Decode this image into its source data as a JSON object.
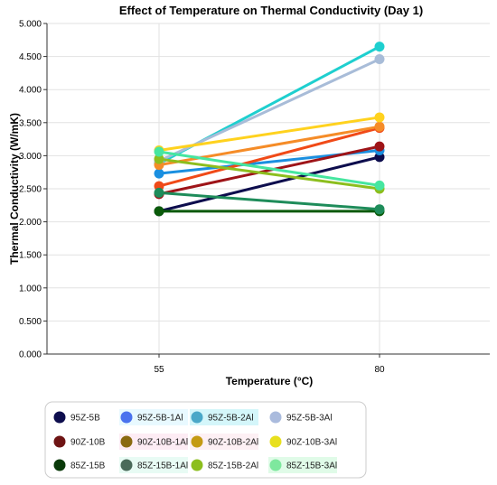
{
  "chart_data": {
    "type": "line",
    "title": "Effect of Temperature on Thermal Conductivity (Day 1)",
    "xlabel": "Temperature (°C)",
    "ylabel": "Thermal Conductivity (W/mK)",
    "categories": [
      "55",
      "80"
    ],
    "ylim": [
      0,
      5
    ],
    "yticks": [
      "0.000",
      "0.500",
      "1.000",
      "1.500",
      "2.000",
      "2.500",
      "3.000",
      "3.500",
      "4.000",
      "4.500",
      "5.000"
    ],
    "grid": true,
    "legend_position": "bottom",
    "series": [
      {
        "name": "95Z-5B",
        "values": [
          2.16,
          2.98
        ],
        "color": "#0d0d4d",
        "line": true
      },
      {
        "name": "95Z-5B-1Al",
        "values": [
          2.73,
          3.08
        ],
        "color": "#1a8fe0",
        "line": true
      },
      {
        "name": "95Z-5B-2Al",
        "values": [
          2.88,
          4.65
        ],
        "color": "#1ecfcf",
        "line": true
      },
      {
        "name": "95Z-5B-3Al",
        "values": [
          2.92,
          4.46
        ],
        "color": "#a8bcd8",
        "line": true
      },
      {
        "name": "90Z-10B",
        "values": [
          2.42,
          3.14
        ],
        "color": "#9e1418",
        "line": true
      },
      {
        "name": "90Z-10B-1Al",
        "values": [
          2.54,
          3.42
        ],
        "color": "#f04a18",
        "line": true
      },
      {
        "name": "90Z-10B-2Al",
        "values": [
          2.86,
          3.44
        ],
        "color": "#f58c28",
        "line": true
      },
      {
        "name": "90Z-10B-3Al",
        "values": [
          3.08,
          3.58
        ],
        "color": "#ffd21e",
        "line": true
      },
      {
        "name": "85Z-15B",
        "values": [
          2.16,
          2.16
        ],
        "color": "#0a5a0a",
        "line": true
      },
      {
        "name": "85Z-15B-1Al",
        "values": [
          2.44,
          2.19
        ],
        "color": "#1e8c5a",
        "line": true
      },
      {
        "name": "85Z-15B-2Al",
        "values": [
          2.95,
          2.5
        ],
        "color": "#8cbe1e",
        "line": true
      },
      {
        "name": "85Z-15B-3Al",
        "values": [
          3.06,
          2.55
        ],
        "color": "#46e6a0",
        "line": true
      }
    ],
    "legend": [
      {
        "name": "95Z-5B",
        "color": "#0d0d4d",
        "bg": ""
      },
      {
        "name": "95Z-5B-1Al",
        "color": "#4a72ee",
        "bg": "#e8f9ff"
      },
      {
        "name": "95Z-5B-2Al",
        "color": "#4aa8c8",
        "bg": "#d4f6fa"
      },
      {
        "name": "95Z-5B-3Al",
        "color": "#aabbdd",
        "bg": ""
      },
      {
        "name": "90Z-10B",
        "color": "#6e1414",
        "bg": ""
      },
      {
        "name": "90Z-10B-1Al",
        "color": "#8a6a10",
        "bg": "#fdecf4"
      },
      {
        "name": "90Z-10B-2Al",
        "color": "#c49a14",
        "bg": "#fdf0f4"
      },
      {
        "name": "90Z-10B-3Al",
        "color": "#e8e01e",
        "bg": ""
      },
      {
        "name": "85Z-15B",
        "color": "#0a3a0a",
        "bg": ""
      },
      {
        "name": "85Z-15B-1Al",
        "color": "#4a6a5a",
        "bg": "#e8fbf4"
      },
      {
        "name": "85Z-15B-2Al",
        "color": "#8cbe1e",
        "bg": ""
      },
      {
        "name": "85Z-15B-3Al",
        "color": "#7ee89e",
        "bg": "#e0fbe8"
      }
    ]
  }
}
